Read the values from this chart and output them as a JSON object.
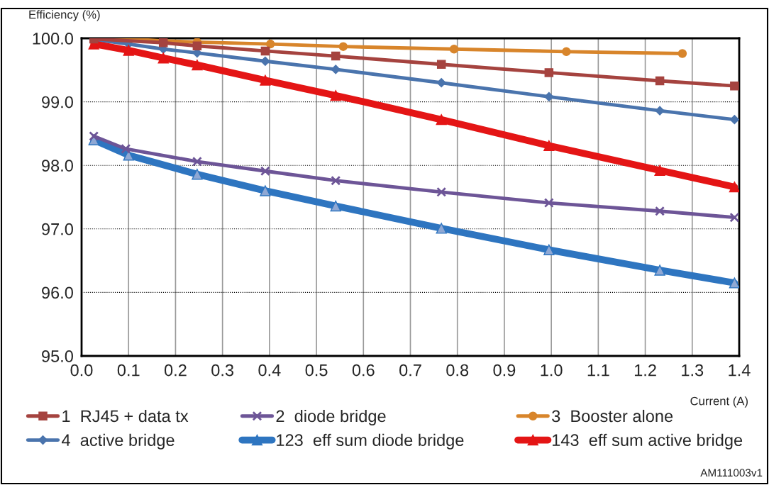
{
  "chart_data": {
    "type": "line",
    "ylabel": "Efficiency (%)",
    "xlabel": "Current (A)",
    "xlim": [
      0,
      1.4
    ],
    "xticks": [
      {
        "value": 0,
        "label": "0.0"
      },
      {
        "value": 0.1,
        "label": "0.1"
      },
      {
        "value": 0.2,
        "label": "0.2"
      },
      {
        "value": 0.3,
        "label": "0.3"
      },
      {
        "value": 0.4,
        "label": "0.4"
      },
      {
        "value": 0.5,
        "label": "0.5"
      },
      {
        "value": 0.6,
        "label": "0.6"
      },
      {
        "value": 0.7,
        "label": "0.7"
      },
      {
        "value": 0.8,
        "label": "0.8"
      },
      {
        "value": 0.9,
        "label": "0.9"
      },
      {
        "value": 1,
        "label": "1.0"
      },
      {
        "value": 1.1,
        "label": "1.1"
      },
      {
        "value": 1.2,
        "label": "1.2"
      },
      {
        "value": 1.3,
        "label": "1.3"
      },
      {
        "value": 1.4,
        "label": "1.4"
      }
    ],
    "ylim": [
      95,
      100
    ],
    "yticks": [
      {
        "value": 95,
        "label": "95.0"
      },
      {
        "value": 96,
        "label": "96.0"
      },
      {
        "value": 97,
        "label": "97.0"
      },
      {
        "value": 98,
        "label": "98.0"
      },
      {
        "value": 99,
        "label": "99.0"
      },
      {
        "value": 100,
        "label": "100.0"
      }
    ],
    "grid": true,
    "legend": "bottom",
    "line_style": "solid",
    "annotations": [
      "AM111003v1"
    ],
    "series": [
      {
        "name": "1  RJ45 + data tx",
        "color": "#a5433f",
        "marker": "square",
        "x": [
          0.026,
          0.174,
          0.246,
          0.391,
          0.541,
          0.766,
          0.995,
          1.231,
          1.39
        ],
        "values": [
          99.99,
          99.93,
          99.88,
          99.8,
          99.72,
          99.59,
          99.46,
          99.33,
          99.25
        ]
      },
      {
        "name": "2  diode bridge",
        "color": "#6d5597",
        "marker": "cross",
        "x": [
          0.026,
          0.094,
          0.246,
          0.391,
          0.541,
          0.766,
          0.995,
          1.231,
          1.39
        ],
        "values": [
          98.46,
          98.26,
          98.06,
          97.91,
          97.76,
          97.58,
          97.41,
          97.28,
          97.18
        ]
      },
      {
        "name": "3  Booster alone",
        "color": "#d8852b",
        "marker": "circle",
        "x": [
          0.026,
          0.1,
          0.174,
          0.246,
          0.402,
          0.557,
          0.793,
          1.032,
          1.279
        ],
        "values": [
          100.0,
          99.99,
          99.96,
          99.94,
          99.91,
          99.87,
          99.83,
          99.79,
          99.76
        ]
      },
      {
        "name": "4  active bridge",
        "color": "#4a74ad",
        "marker": "diamond",
        "x": [
          0.026,
          0.1,
          0.174,
          0.246,
          0.391,
          0.541,
          0.766,
          0.995,
          1.231,
          1.39
        ],
        "values": [
          99.98,
          99.91,
          99.83,
          99.77,
          99.64,
          99.51,
          99.3,
          99.08,
          98.86,
          98.72
        ]
      },
      {
        "name": "123  eff sum diode bridge",
        "color": "#2e75c0",
        "marker": "triangle",
        "x": [
          0.026,
          0.1,
          0.246,
          0.391,
          0.541,
          0.766,
          0.995,
          1.231,
          1.39
        ],
        "values": [
          98.4,
          98.16,
          97.86,
          97.6,
          97.36,
          97.01,
          96.67,
          96.35,
          96.15
        ]
      },
      {
        "name": "143  eff sum active bridge",
        "color": "#e41515",
        "marker": "triangle",
        "x": [
          0.026,
          0.1,
          0.174,
          0.246,
          0.391,
          0.541,
          0.766,
          0.995,
          1.231,
          1.39
        ],
        "values": [
          99.91,
          99.81,
          99.69,
          99.58,
          99.34,
          99.1,
          98.72,
          98.31,
          97.92,
          97.66
        ]
      }
    ]
  }
}
